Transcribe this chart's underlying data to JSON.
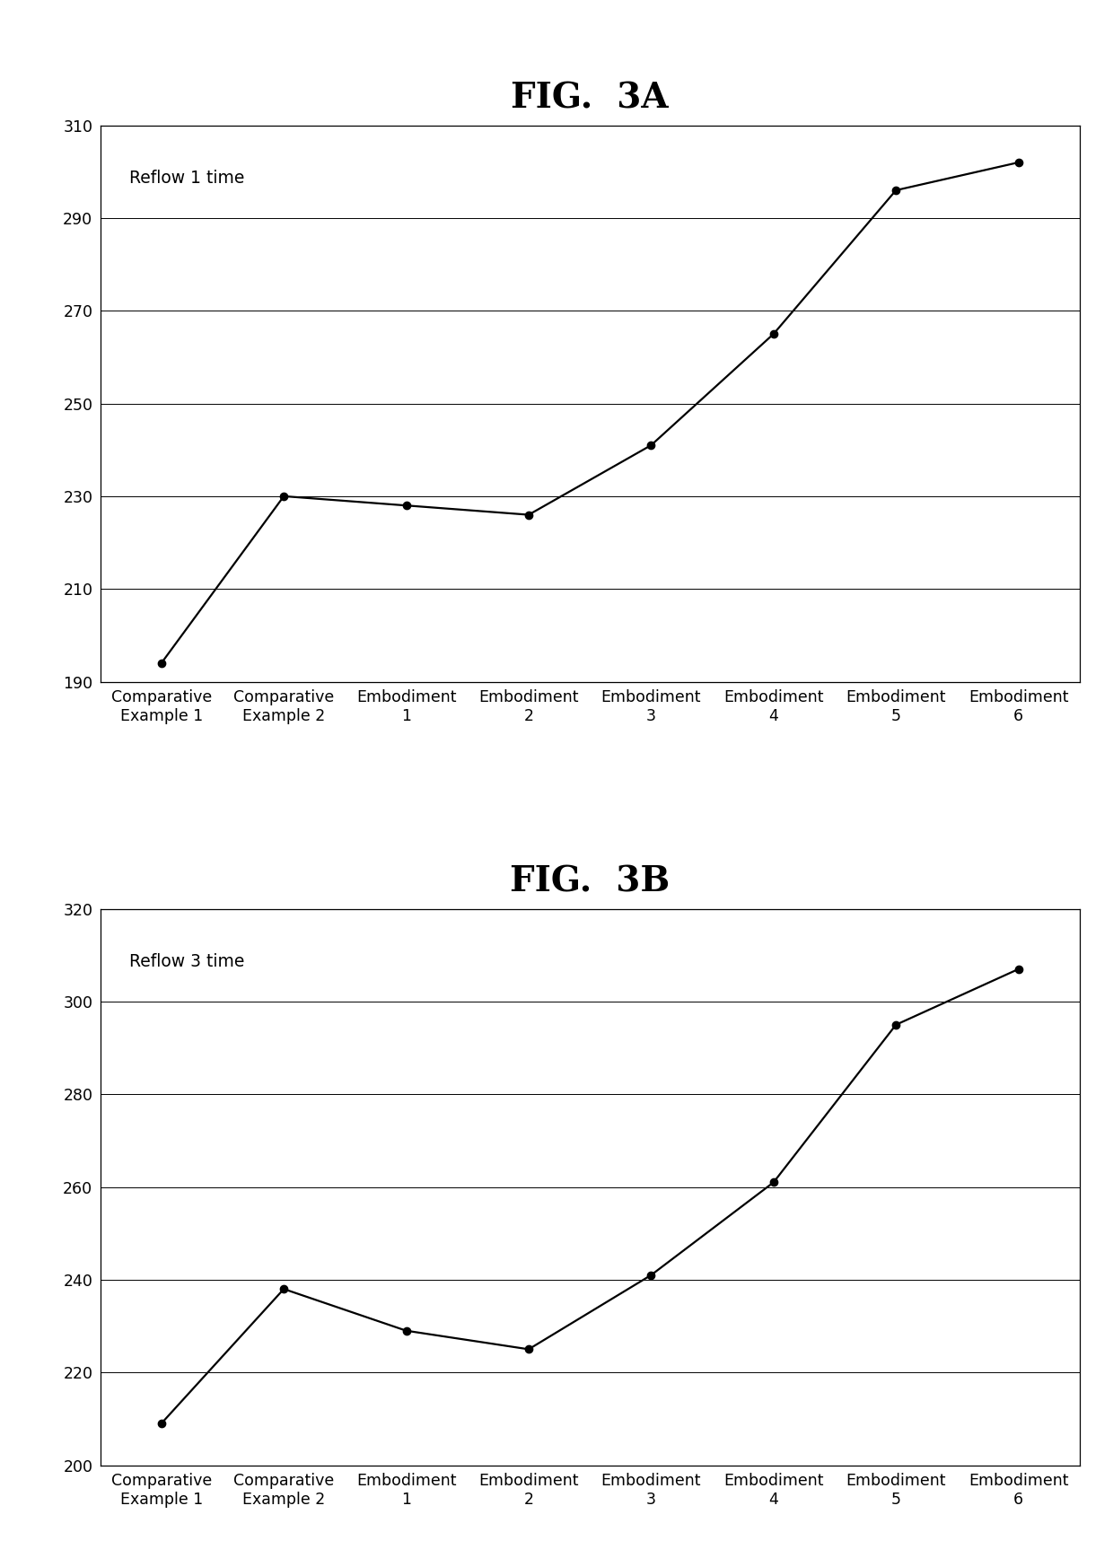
{
  "fig3a": {
    "title": "FIG.  3A",
    "label": "Reflow 1 time",
    "x_labels": [
      "Comparative\nExample 1",
      "Comparative\nExample 2",
      "Embodiment\n1",
      "Embodiment\n2",
      "Embodiment\n3",
      "Embodiment\n4",
      "Embodiment\n5",
      "Embodiment\n6"
    ],
    "y_values": [
      194,
      230,
      228,
      226,
      241,
      265,
      296,
      302
    ],
    "ylim": [
      190,
      310
    ],
    "yticks": [
      190,
      210,
      230,
      250,
      270,
      290,
      310
    ]
  },
  "fig3b": {
    "title": "FIG.  3B",
    "label": "Reflow 3 time",
    "x_labels": [
      "Comparative\nExample 1",
      "Comparative\nExample 2",
      "Embodiment\n1",
      "Embodiment\n2",
      "Embodiment\n3",
      "Embodiment\n4",
      "Embodiment\n5",
      "Embodiment\n6"
    ],
    "y_values": [
      209,
      238,
      229,
      225,
      241,
      261,
      295,
      307
    ],
    "ylim": [
      200,
      320
    ],
    "yticks": [
      200,
      220,
      240,
      260,
      280,
      300,
      320
    ]
  },
  "line_color": "#000000",
  "marker_color": "#000000",
  "bg_color": "#ffffff",
  "title_fontsize": 28,
  "tick_fontsize": 12.5,
  "annotation_fontsize": 13.5,
  "marker_size": 6,
  "line_width": 1.6
}
